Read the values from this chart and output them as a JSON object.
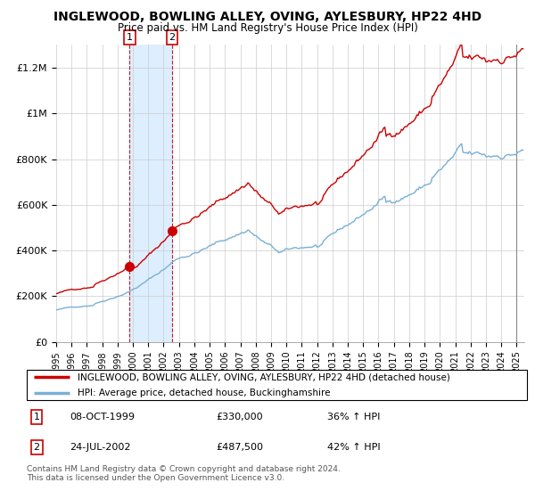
{
  "title": "INGLEWOOD, BOWLING ALLEY, OVING, AYLESBURY, HP22 4HD",
  "subtitle": "Price paid vs. HM Land Registry's House Price Index (HPI)",
  "legend_line1": "INGLEWOOD, BOWLING ALLEY, OVING, AYLESBURY, HP22 4HD (detached house)",
  "legend_line2": "HPI: Average price, detached house, Buckinghamshire",
  "transaction1_date": "08-OCT-1999",
  "transaction1_price": "£330,000",
  "transaction1_hpi": "36% ↑ HPI",
  "transaction2_date": "24-JUL-2002",
  "transaction2_price": "£487,500",
  "transaction2_hpi": "42% ↑ HPI",
  "footer": "Contains HM Land Registry data © Crown copyright and database right 2024.\nThis data is licensed under the Open Government Licence v3.0.",
  "price_line_color": "#cc0000",
  "hpi_line_color": "#7ab0d4",
  "highlight_color": "#ddeeff",
  "transaction_box_color": "#cc0000",
  "ylim": [
    0,
    1300000
  ],
  "yticks": [
    0,
    200000,
    400000,
    600000,
    800000,
    1000000,
    1200000
  ],
  "ytick_labels": [
    "£0",
    "£200K",
    "£400K",
    "£600K",
    "£800K",
    "£1M",
    "£1.2M"
  ],
  "transaction1_x": 1999.78,
  "transaction1_y": 330000,
  "transaction2_x": 2002.55,
  "transaction2_y": 487500,
  "vline1_x": 1999.78,
  "vline2_x": 2002.55,
  "highlight_x1": 1999.78,
  "highlight_x2": 2002.55,
  "xmin": 1995.0,
  "xmax": 2025.5
}
